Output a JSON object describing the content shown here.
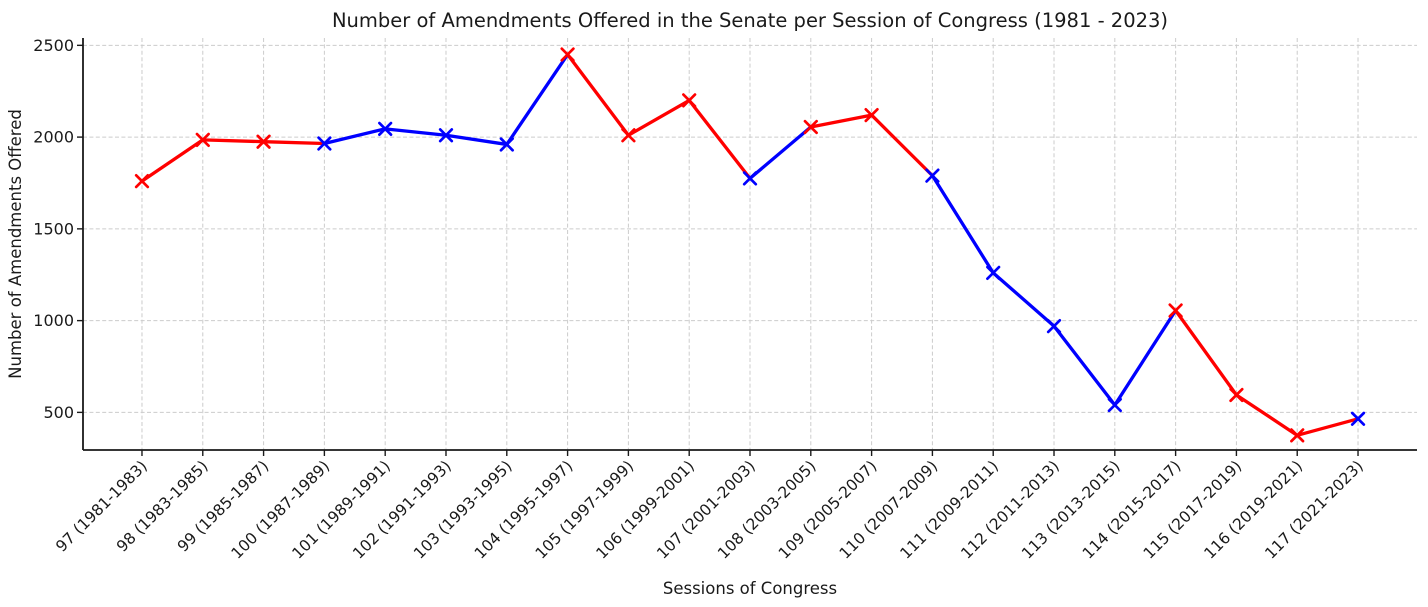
{
  "figure": {
    "background": "#ffffff",
    "text_color": "#1a1a1a",
    "grid_color": "#cccccc"
  },
  "chart_data": {
    "type": "line",
    "title": "Number of Amendments Offered in the Senate per Session of Congress (1981 - 2023)",
    "xlabel": "Sessions of Congress",
    "ylabel": "Number of Amendments Offered",
    "categories": [
      "97 (1981-1983)",
      "98 (1983-1985)",
      "99 (1985-1987)",
      "100 (1987-1989)",
      "101 (1989-1991)",
      "102 (1991-1993)",
      "103 (1993-1995)",
      "104 (1995-1997)",
      "105 (1997-1999)",
      "106 (1999-2001)",
      "107 (2001-2003)",
      "108 (2003-2005)",
      "109 (2005-2007)",
      "110 (2007-2009)",
      "111 (2009-2011)",
      "112 (2011-2013)",
      "113 (2013-2015)",
      "114 (2015-2017)",
      "115 (2017-2019)",
      "116 (2019-2021)",
      "117 (2021-2023)"
    ],
    "values": [
      1760,
      1985,
      1975,
      1965,
      2045,
      2010,
      1960,
      2450,
      2010,
      2200,
      1775,
      2055,
      2120,
      1790,
      1260,
      970,
      540,
      1055,
      595,
      375,
      465
    ],
    "point_colors": [
      "red",
      "red",
      "red",
      "blue",
      "blue",
      "blue",
      "blue",
      "red",
      "red",
      "red",
      "blue",
      "red",
      "red",
      "blue",
      "blue",
      "blue",
      "blue",
      "red",
      "red",
      "red",
      "blue"
    ],
    "segment_color_rule": "each segment uses the color of its left endpoint",
    "palette": {
      "red": "#ff0000",
      "blue": "#0000ff"
    },
    "marker": "x",
    "line_width": 3.3,
    "yticks": [
      500,
      1000,
      1500,
      2000,
      2500
    ],
    "ylim": [
      295,
      2540
    ],
    "grid": {
      "visible": true,
      "style": "dashed"
    },
    "legend": "none"
  }
}
